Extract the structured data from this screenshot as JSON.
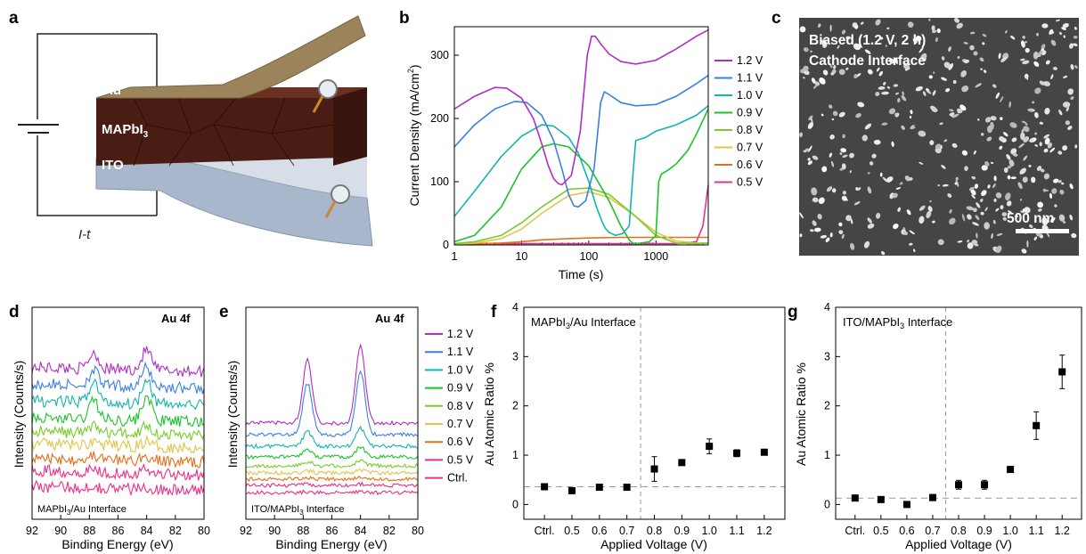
{
  "panel_labels": [
    "a",
    "b",
    "c",
    "d",
    "e",
    "f",
    "g"
  ],
  "schematic": {
    "layers": [
      "Au",
      "MAPbI",
      "ITO"
    ],
    "mapbi_sub": "3",
    "circuit_label": "I-t"
  },
  "sem": {
    "line1": "Biased (1.2 V, 2 h)",
    "line2": "Cathode Interface",
    "scalebar": "500 nm"
  },
  "colors": {
    "1.2 V": "#b02ec4",
    "1.1 V": "#3a80e0",
    "1.0 V": "#12b3b3",
    "0.9 V": "#18c427",
    "0.8 V": "#78cc2a",
    "0.7 V": "#e0c54a",
    "0.6 V": "#e2701a",
    "0.5 V": "#ea2f86",
    "Ctrl.": "#ea2f86"
  },
  "chart_data": [
    {
      "panel": "b",
      "type": "line",
      "xlabel": "Time (s)",
      "ylabel": "Current Density (mA/cm",
      "ylabel_sup": "2",
      "ylabel_end": ")",
      "xscale": "log",
      "xlim": [
        1,
        6000
      ],
      "ylim": [
        0,
        345
      ],
      "xticks": [
        "1",
        "10",
        "100",
        "1000"
      ],
      "yticks": [
        "0",
        "100",
        "200",
        "300"
      ],
      "legend": "right",
      "series": [
        {
          "name": "1.2 V",
          "x": [
            1,
            2,
            4,
            6,
            10,
            15,
            20,
            25,
            30,
            35,
            40,
            55,
            75,
            95,
            110,
            125,
            150,
            200,
            300,
            500,
            1000,
            2000,
            4000,
            6000
          ],
          "y": [
            215,
            235,
            249,
            248,
            232,
            200,
            160,
            125,
            105,
            97,
            95,
            110,
            180,
            300,
            330,
            330,
            318,
            302,
            290,
            286,
            292,
            310,
            330,
            340
          ]
        },
        {
          "name": "1.1 V",
          "x": [
            1,
            2,
            4,
            8,
            12,
            20,
            30,
            40,
            50,
            60,
            70,
            90,
            120,
            150,
            170,
            200,
            300,
            500,
            1000,
            2000,
            4000,
            6000
          ],
          "y": [
            155,
            190,
            215,
            227,
            225,
            205,
            165,
            120,
            80,
            62,
            60,
            70,
            120,
            225,
            242,
            238,
            225,
            220,
            222,
            235,
            255,
            268
          ]
        },
        {
          "name": "1.0 V",
          "x": [
            1,
            2,
            5,
            10,
            20,
            30,
            50,
            70,
            100,
            130,
            160,
            180,
            200,
            250,
            320,
            400,
            460,
            500,
            700,
            1000,
            2000,
            4000,
            6000
          ],
          "y": [
            45,
            85,
            140,
            172,
            190,
            188,
            170,
            145,
            100,
            60,
            35,
            25,
            20,
            15,
            18,
            30,
            120,
            165,
            170,
            180,
            190,
            205,
            220
          ]
        },
        {
          "name": "0.9 V",
          "x": [
            1,
            2,
            5,
            10,
            20,
            30,
            50,
            100,
            200,
            300,
            400,
            450,
            500,
            600,
            800,
            1000,
            1100,
            1200,
            1500,
            2000,
            3000,
            4000,
            6000
          ],
          "y": [
            5,
            15,
            60,
            120,
            155,
            160,
            155,
            125,
            70,
            30,
            8,
            3,
            2,
            3,
            5,
            15,
            100,
            112,
            118,
            128,
            150,
            175,
            215
          ]
        },
        {
          "name": "0.8 V",
          "x": [
            1,
            2,
            5,
            10,
            20,
            50,
            100,
            200,
            500,
            1000,
            2000,
            4000,
            6000
          ],
          "y": [
            2,
            5,
            15,
            35,
            60,
            88,
            90,
            80,
            45,
            15,
            3,
            2,
            3
          ]
        },
        {
          "name": "0.7 V",
          "x": [
            1,
            2,
            5,
            10,
            20,
            50,
            100,
            200,
            500,
            1000,
            2000,
            4000,
            6000
          ],
          "y": [
            1,
            3,
            10,
            25,
            50,
            78,
            84,
            75,
            45,
            20,
            6,
            3,
            3
          ]
        },
        {
          "name": "0.6 V",
          "x": [
            1,
            5,
            10,
            20,
            50,
            100,
            300,
            1000,
            3000,
            6000
          ],
          "y": [
            1,
            3,
            5,
            8,
            10,
            11,
            12,
            12,
            12,
            12
          ]
        },
        {
          "name": "0.5 V",
          "x": [
            1,
            2000,
            4000,
            5000,
            5600,
            6000
          ],
          "y": [
            2,
            2,
            5,
            30,
            70,
            95
          ]
        }
      ]
    },
    {
      "panel": "d",
      "type": "line",
      "title": "Au 4f",
      "annotation": "MAPbI",
      "annotation_sub": "3",
      "annotation_end": "/Au Interface",
      "xlabel": "Binding Energy (eV)",
      "ylabel": "Intensity (Counts/s)",
      "xlim": [
        92,
        80
      ],
      "x_reversed": true,
      "xticks": [
        "92",
        "90",
        "88",
        "86",
        "84",
        "82",
        "80"
      ],
      "series": [
        {
          "name": "1.2 V",
          "offset": 8.3,
          "peak_scale": 1.15
        },
        {
          "name": "1.1 V",
          "offset": 7.35,
          "peak_scale": 1.1
        },
        {
          "name": "1.0 V",
          "offset": 6.4,
          "peak_scale": 1.5
        },
        {
          "name": "0.9 V",
          "offset": 5.45,
          "peak_scale": 1.4
        },
        {
          "name": "0.8 V",
          "offset": 4.7,
          "peak_scale": 0.55
        },
        {
          "name": "0.7 V",
          "offset": 4.0,
          "peak_scale": 0.3
        },
        {
          "name": "0.6 V",
          "offset": 3.2,
          "peak_scale": 0.25
        },
        {
          "name": "0.5 V",
          "offset": 2.5,
          "peak_scale": 0.2
        },
        {
          "name": "Ctrl.",
          "offset": 1.6,
          "peak_scale": 0.15
        }
      ]
    },
    {
      "panel": "e",
      "type": "line",
      "title": "Au 4f",
      "annotation": "ITO/MAPbI",
      "annotation_sub": "3",
      "annotation_end": " Interface",
      "xlabel": "Binding Energy (eV)",
      "ylabel": "Intensity (Counts/s)",
      "xlim": [
        92,
        80
      ],
      "x_reversed": true,
      "xticks": [
        "92",
        "90",
        "88",
        "86",
        "84",
        "82",
        "80"
      ],
      "legend": "right",
      "series": [
        {
          "name": "1.2 V",
          "offset": 5.4,
          "peak_scale": 4.4
        },
        {
          "name": "1.1 V",
          "offset": 4.75,
          "peak_scale": 3.6
        },
        {
          "name": "1.0 V",
          "offset": 4.1,
          "peak_scale": 1.0
        },
        {
          "name": "0.9 V",
          "offset": 3.5,
          "peak_scale": 0.55
        },
        {
          "name": "0.8 V",
          "offset": 3.0,
          "peak_scale": 0.3
        },
        {
          "name": "0.7 V",
          "offset": 2.6,
          "peak_scale": 0.15
        },
        {
          "name": "0.6 V",
          "offset": 2.25,
          "peak_scale": 0.1
        },
        {
          "name": "0.5 V",
          "offset": 1.9,
          "peak_scale": 0.08
        },
        {
          "name": "Ctrl.",
          "offset": 1.5,
          "peak_scale": 0.05
        }
      ]
    },
    {
      "panel": "f",
      "type": "scatter",
      "annotation": "MAPbI",
      "annotation_sub": "3",
      "annotation_end": "/Au Interface",
      "xlabel": "Applied Voltage (V)",
      "ylabel": "Au Atomic Ratio %",
      "categories": [
        "Ctrl.",
        "0.5",
        "0.6",
        "0.7",
        "0.8",
        "0.9",
        "1.0",
        "1.1",
        "1.2"
      ],
      "values": [
        0.36,
        0.28,
        0.35,
        0.35,
        0.72,
        0.85,
        1.18,
        1.04,
        1.06
      ],
      "errors": [
        0.03,
        0.05,
        0.04,
        0.03,
        0.25,
        0.04,
        0.15,
        0.07,
        0.05
      ],
      "ylim": [
        -0.3,
        4
      ],
      "yticks": [
        "0",
        "1",
        "2",
        "3",
        "4"
      ],
      "threshold_x": "0.75",
      "baseline_y": 0.36
    },
    {
      "panel": "g",
      "type": "scatter",
      "annotation": "ITO/MAPbI",
      "annotation_sub": "3",
      "annotation_end": " Interface",
      "xlabel": "Applied Voltage (V)",
      "ylabel": "Au Atomic Ratio %",
      "categories": [
        "Ctrl.",
        "0.5",
        "0.6",
        "0.7",
        "0.8",
        "0.9",
        "1.0",
        "1.1",
        "1.2"
      ],
      "values": [
        0.13,
        0.1,
        0.0,
        0.14,
        0.4,
        0.4,
        0.71,
        1.6,
        2.69
      ],
      "errors": [
        0.03,
        0.03,
        0.02,
        0.06,
        0.09,
        0.09,
        0.06,
        0.28,
        0.34
      ],
      "ylim": [
        -0.3,
        4
      ],
      "yticks": [
        "0",
        "1",
        "2",
        "3",
        "4"
      ],
      "threshold_x": "0.75",
      "baseline_y": 0.13
    }
  ]
}
